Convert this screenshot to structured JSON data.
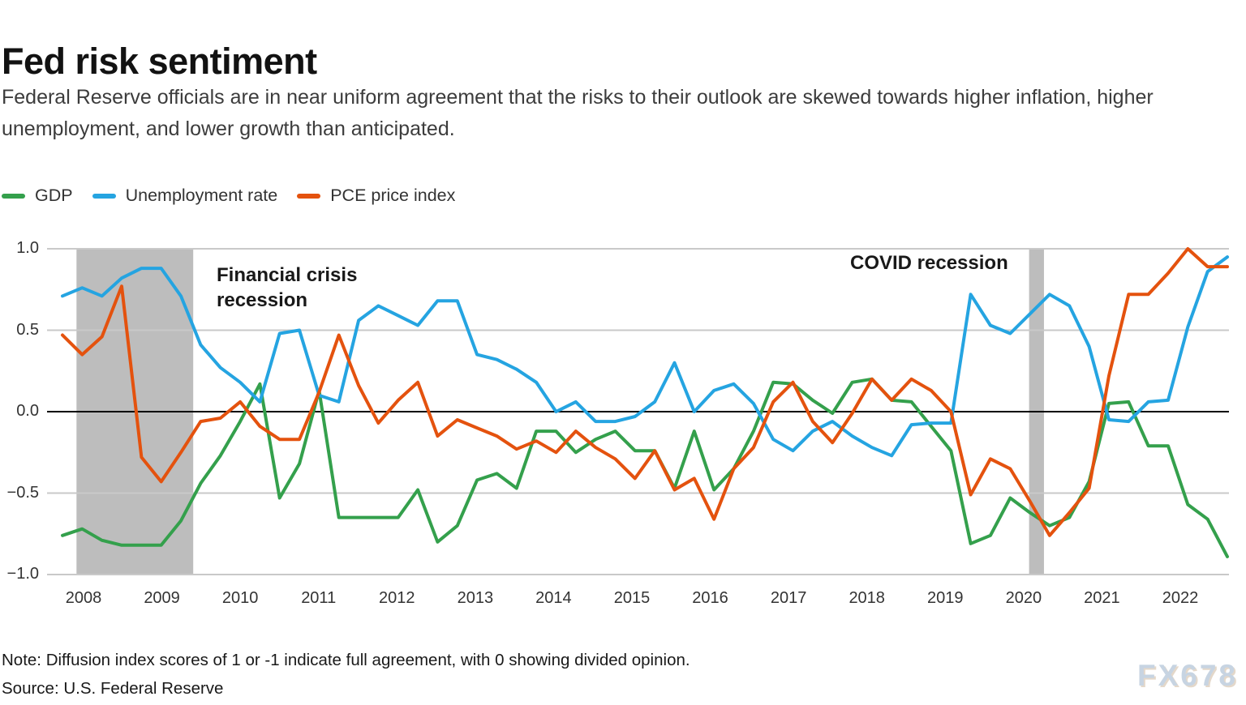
{
  "header": {
    "title": "Fed risk sentiment",
    "subtitle": "Federal Reserve officials are in near uniform agreement that the risks to their outlook are skewed towards higher inflation, higher unemployment, and lower growth than anticipated."
  },
  "legend": [
    {
      "label": "GDP",
      "color": "#34a04c"
    },
    {
      "label": "Unemployment rate",
      "color": "#25a4e1"
    },
    {
      "label": "PCE price index",
      "color": "#e4520e"
    }
  ],
  "annotations": {
    "financial_crisis": "Financial crisis recession",
    "covid": "COVID recession"
  },
  "footer": {
    "note": "Note: Diffusion index scores of 1 or -1 indicate full agreement, with 0 showing divided opinion.",
    "source": "Source: U.S. Federal Reserve",
    "watermark": "FX678"
  },
  "chart_data": {
    "type": "line",
    "title": "Fed risk sentiment",
    "x_unit": "quarterly FOMC projection rounds",
    "x": [
      "2007Q4",
      "2008Q1",
      "2008Q2",
      "2008Q3",
      "2008Q4",
      "2009Q1",
      "2009Q2",
      "2009Q3",
      "2009Q4",
      "2010Q1",
      "2010Q2",
      "2010Q3",
      "2010Q4",
      "2011Q1",
      "2011Q2",
      "2011Q3",
      "2011Q4",
      "2012Q1",
      "2012Q2",
      "2012Q3",
      "2012Q4",
      "2013Q1",
      "2013Q2",
      "2013Q3",
      "2013Q4",
      "2014Q1",
      "2014Q2",
      "2014Q3",
      "2014Q4",
      "2015Q1",
      "2015Q2",
      "2015Q3",
      "2015Q4",
      "2016Q1",
      "2016Q2",
      "2016Q3",
      "2016Q4",
      "2017Q1",
      "2017Q2",
      "2017Q3",
      "2017Q4",
      "2018Q1",
      "2018Q2",
      "2018Q3",
      "2018Q4",
      "2019Q1",
      "2019Q2",
      "2019Q3",
      "2019Q4",
      "2020Q1",
      "2020Q2",
      "2020Q3",
      "2020Q4",
      "2021Q1",
      "2021Q2",
      "2021Q3",
      "2021Q4",
      "2022Q1",
      "2022Q2",
      "2022Q3"
    ],
    "x_tick_labels": [
      "2008",
      "2009",
      "2010",
      "2011",
      "2012",
      "2013",
      "2014",
      "2015",
      "2016",
      "2017",
      "2018",
      "2019",
      "2020",
      "2021",
      "2022"
    ],
    "ylim": [
      -1.0,
      1.0
    ],
    "y_ticks": [
      1.0,
      0.5,
      0.0,
      -0.5,
      -1.0
    ],
    "grid": true,
    "zero_line": true,
    "legend_position": "top-left",
    "recession_bands": [
      {
        "label": "Financial crisis recession",
        "from_year": 2007.91,
        "to_year": 2009.4
      },
      {
        "label": "COVID recession",
        "from_year": 2020.07,
        "to_year": 2020.26
      }
    ],
    "series": [
      {
        "name": "GDP",
        "color": "#34a04c",
        "values": [
          -0.76,
          -0.72,
          -0.79,
          -0.82,
          -0.82,
          -0.82,
          -0.67,
          -0.44,
          -0.27,
          -0.06,
          0.17,
          -0.53,
          -0.32,
          0.13,
          -0.65,
          -0.65,
          -0.65,
          -0.65,
          -0.48,
          -0.8,
          -0.7,
          -0.42,
          -0.38,
          -0.47,
          -0.12,
          -0.12,
          -0.25,
          -0.17,
          -0.12,
          -0.24,
          -0.24,
          -0.47,
          -0.12,
          -0.48,
          -0.35,
          -0.12,
          0.18,
          0.17,
          0.07,
          -0.01,
          0.18,
          0.2,
          0.07,
          0.06,
          -0.09,
          -0.24,
          -0.81,
          -0.76,
          -0.53,
          -0.62,
          -0.7,
          -0.65,
          -0.43,
          0.05,
          0.06,
          -0.21,
          -0.21,
          -0.57,
          -0.66,
          -0.89
        ]
      },
      {
        "name": "Unemployment rate",
        "color": "#25a4e1",
        "values": [
          0.71,
          0.76,
          0.71,
          0.82,
          0.88,
          0.88,
          0.71,
          0.41,
          0.27,
          0.18,
          0.06,
          0.48,
          0.5,
          0.1,
          0.06,
          0.56,
          0.65,
          0.59,
          0.53,
          0.68,
          0.68,
          0.35,
          0.32,
          0.26,
          0.18,
          0.0,
          0.06,
          -0.06,
          -0.06,
          -0.03,
          0.06,
          0.3,
          0.0,
          0.13,
          0.17,
          0.05,
          -0.17,
          -0.24,
          -0.12,
          -0.06,
          -0.15,
          -0.22,
          -0.27,
          -0.08,
          -0.07,
          -0.07,
          0.72,
          0.53,
          0.48,
          0.6,
          0.72,
          0.65,
          0.4,
          -0.05,
          -0.06,
          0.06,
          0.07,
          0.52,
          0.86,
          0.95
        ]
      },
      {
        "name": "PCE price index",
        "color": "#e4520e",
        "values": [
          0.47,
          0.35,
          0.46,
          0.77,
          -0.28,
          -0.43,
          -0.25,
          -0.06,
          -0.04,
          0.06,
          -0.09,
          -0.17,
          -0.17,
          0.12,
          0.47,
          0.16,
          -0.07,
          0.07,
          0.18,
          -0.15,
          -0.05,
          -0.1,
          -0.15,
          -0.23,
          -0.18,
          -0.25,
          -0.12,
          -0.22,
          -0.29,
          -0.41,
          -0.24,
          -0.48,
          -0.41,
          -0.66,
          -0.35,
          -0.22,
          0.06,
          0.18,
          -0.06,
          -0.19,
          -0.01,
          0.2,
          0.07,
          0.2,
          0.13,
          0.0,
          -0.51,
          -0.29,
          -0.35,
          -0.55,
          -0.76,
          -0.62,
          -0.47,
          0.22,
          0.72,
          0.72,
          0.85,
          1.0,
          0.89,
          0.89
        ]
      }
    ]
  }
}
